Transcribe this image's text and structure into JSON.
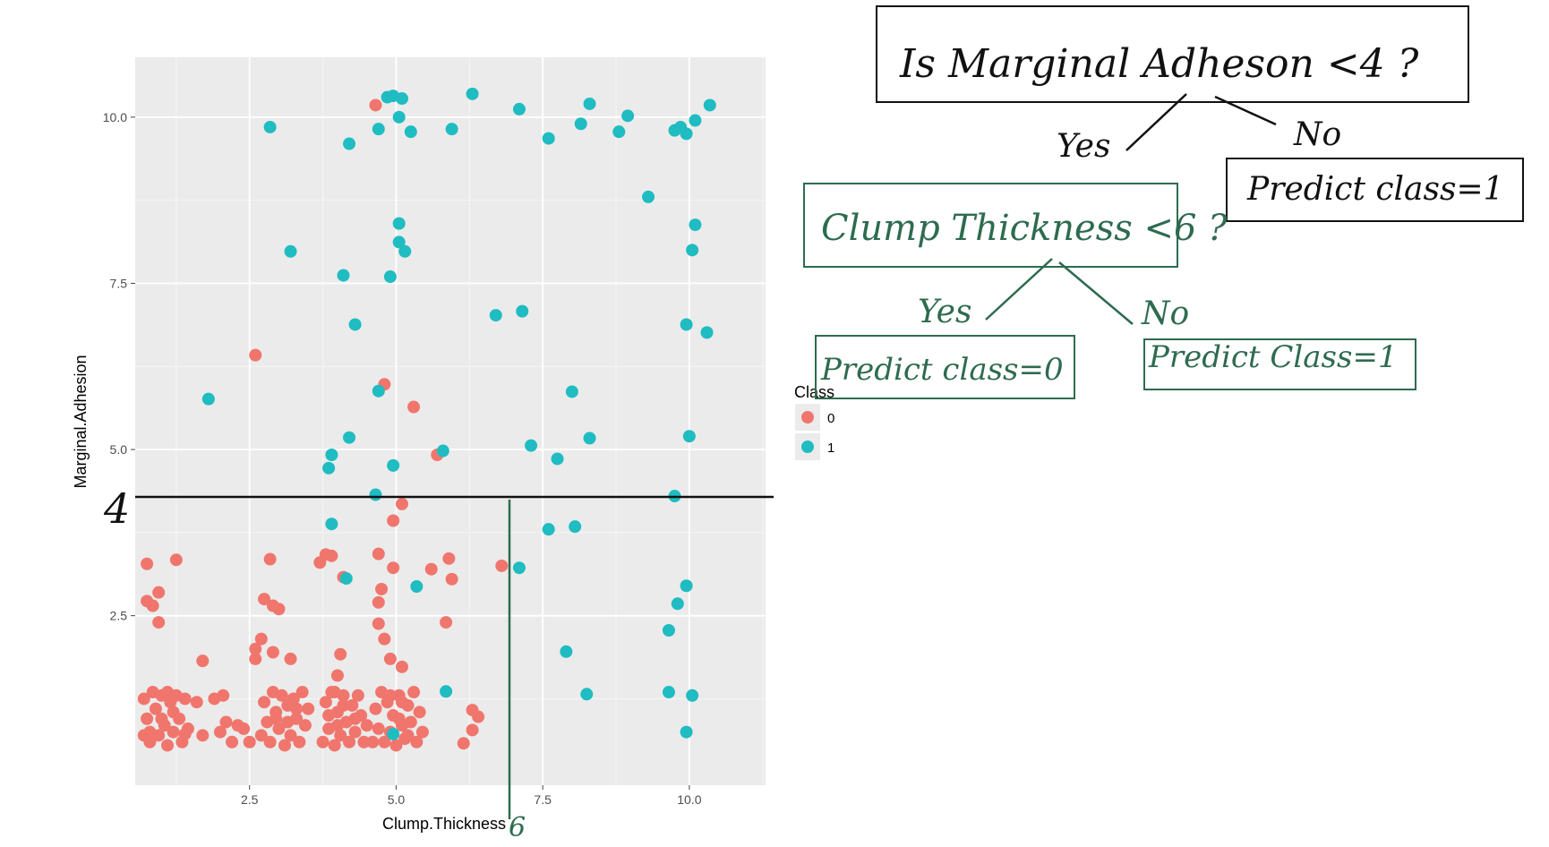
{
  "chart_data": {
    "type": "scatter",
    "xlabel": "Clump.Thickness",
    "ylabel": "Marginal.Adhesion",
    "xlim": [
      0.55,
      11.3
    ],
    "ylim": [
      -0.05,
      10.9
    ],
    "xticks": [
      {
        "value": 2.5,
        "label": "2.5"
      },
      {
        "value": 5.0,
        "label": "5.0"
      },
      {
        "value": 7.5,
        "label": "7.5"
      },
      {
        "value": 10.0,
        "label": "10.0"
      }
    ],
    "yticks": [
      {
        "value": 2.5,
        "label": "2.5"
      },
      {
        "value": 5.0,
        "label": "5.0"
      },
      {
        "value": 7.5,
        "label": "7.5"
      },
      {
        "value": 10.0,
        "label": "10.0"
      }
    ],
    "legend": {
      "title": "Class",
      "position": "right"
    },
    "grid": true,
    "series": [
      {
        "name": "0",
        "color": "#f0766d",
        "points": [
          [
            4.65,
            10.18
          ],
          [
            2.6,
            6.42
          ],
          [
            4.8,
            5.98
          ],
          [
            5.3,
            5.64
          ],
          [
            5.7,
            4.92
          ],
          [
            5.1,
            4.18
          ],
          [
            4.95,
            3.93
          ],
          [
            4.7,
            3.43
          ],
          [
            4.95,
            3.22
          ],
          [
            4.75,
            2.9
          ],
          [
            4.7,
            2.7
          ],
          [
            4.7,
            2.38
          ],
          [
            4.8,
            2.15
          ],
          [
            4.9,
            1.85
          ],
          [
            5.1,
            1.73
          ],
          [
            5.9,
            3.36
          ],
          [
            5.95,
            3.05
          ],
          [
            5.6,
            3.2
          ],
          [
            5.85,
            2.4
          ],
          [
            6.8,
            3.25
          ],
          [
            3.7,
            3.3
          ],
          [
            3.8,
            3.42
          ],
          [
            3.9,
            3.4
          ],
          [
            4.1,
            3.08
          ],
          [
            4.05,
            1.92
          ],
          [
            4.0,
            1.6
          ],
          [
            3.95,
            1.35
          ],
          [
            2.85,
            3.35
          ],
          [
            2.75,
            2.75
          ],
          [
            2.9,
            2.65
          ],
          [
            3.0,
            2.6
          ],
          [
            2.7,
            2.15
          ],
          [
            2.6,
            2.0
          ],
          [
            2.6,
            1.85
          ],
          [
            2.9,
            1.95
          ],
          [
            3.2,
            1.85
          ],
          [
            1.25,
            3.34
          ],
          [
            0.75,
            3.28
          ],
          [
            0.95,
            2.85
          ],
          [
            0.75,
            2.72
          ],
          [
            0.85,
            2.65
          ],
          [
            0.95,
            2.4
          ],
          [
            1.7,
            1.82
          ],
          [
            6.3,
            1.08
          ],
          [
            6.4,
            0.98
          ],
          [
            6.3,
            0.78
          ],
          [
            6.15,
            0.58
          ],
          [
            0.7,
            1.25
          ],
          [
            0.75,
            0.95
          ],
          [
            0.8,
            0.6
          ],
          [
            0.85,
            1.35
          ],
          [
            0.9,
            1.1
          ],
          [
            0.95,
            0.7
          ],
          [
            1.0,
            1.3
          ],
          [
            1.05,
            0.85
          ],
          [
            1.1,
            0.55
          ],
          [
            1.15,
            1.2
          ],
          [
            1.2,
            0.75
          ],
          [
            1.25,
            1.3
          ],
          [
            1.3,
            0.95
          ],
          [
            1.35,
            0.6
          ],
          [
            1.4,
            1.25
          ],
          [
            1.45,
            0.8
          ],
          [
            1.0,
            0.95
          ],
          [
            0.8,
            0.75
          ],
          [
            1.2,
            1.05
          ],
          [
            1.4,
            0.72
          ],
          [
            0.7,
            0.7
          ],
          [
            1.1,
            1.35
          ],
          [
            1.6,
            1.2
          ],
          [
            1.7,
            0.7
          ],
          [
            1.9,
            1.25
          ],
          [
            2.0,
            0.75
          ],
          [
            2.05,
            1.3
          ],
          [
            2.1,
            0.9
          ],
          [
            2.2,
            0.6
          ],
          [
            2.3,
            0.85
          ],
          [
            2.4,
            0.8
          ],
          [
            2.5,
            0.6
          ],
          [
            2.7,
            0.7
          ],
          [
            2.75,
            1.2
          ],
          [
            2.8,
            0.9
          ],
          [
            2.85,
            0.6
          ],
          [
            2.9,
            1.35
          ],
          [
            2.95,
            1.05
          ],
          [
            3.0,
            0.8
          ],
          [
            3.05,
            1.3
          ],
          [
            3.1,
            0.55
          ],
          [
            3.15,
            1.15
          ],
          [
            3.2,
            0.7
          ],
          [
            3.25,
            1.25
          ],
          [
            3.3,
            0.95
          ],
          [
            3.35,
            0.6
          ],
          [
            3.4,
            1.35
          ],
          [
            3.45,
            0.85
          ],
          [
            3.5,
            1.1
          ],
          [
            2.95,
            0.95
          ],
          [
            3.15,
            0.9
          ],
          [
            3.3,
            1.1
          ],
          [
            3.75,
            0.6
          ],
          [
            3.8,
            1.2
          ],
          [
            3.85,
            0.8
          ],
          [
            3.9,
            1.35
          ],
          [
            3.95,
            0.55
          ],
          [
            4.0,
            1.05
          ],
          [
            4.05,
            0.7
          ],
          [
            4.1,
            1.3
          ],
          [
            4.15,
            0.9
          ],
          [
            4.2,
            0.6
          ],
          [
            4.25,
            1.15
          ],
          [
            4.3,
            0.75
          ],
          [
            4.35,
            1.3
          ],
          [
            4.4,
            1.0
          ],
          [
            4.45,
            0.6
          ],
          [
            4.5,
            0.85
          ],
          [
            3.85,
            1.0
          ],
          [
            4.1,
            1.15
          ],
          [
            4.3,
            0.95
          ],
          [
            4.0,
            0.85
          ],
          [
            4.6,
            0.6
          ],
          [
            4.65,
            1.1
          ],
          [
            4.7,
            0.8
          ],
          [
            4.75,
            1.35
          ],
          [
            4.8,
            0.6
          ],
          [
            4.85,
            1.2
          ],
          [
            4.9,
            0.75
          ],
          [
            4.95,
            1.0
          ],
          [
            5.0,
            0.55
          ],
          [
            5.05,
            1.3
          ],
          [
            5.1,
            0.85
          ],
          [
            5.15,
            0.65
          ],
          [
            5.2,
            1.15
          ],
          [
            5.25,
            0.9
          ],
          [
            5.3,
            1.35
          ],
          [
            5.35,
            0.6
          ],
          [
            5.4,
            1.05
          ],
          [
            5.45,
            0.75
          ],
          [
            5.1,
            1.2
          ],
          [
            5.2,
            0.7
          ],
          [
            5.05,
            0.95
          ],
          [
            4.9,
            1.3
          ]
        ]
      },
      {
        "name": "1",
        "color": "#1fbcc2",
        "points": [
          [
            4.85,
            10.3
          ],
          [
            4.95,
            10.32
          ],
          [
            5.1,
            10.28
          ],
          [
            6.3,
            10.35
          ],
          [
            7.1,
            10.12
          ],
          [
            8.3,
            10.2
          ],
          [
            8.95,
            10.02
          ],
          [
            10.35,
            10.18
          ],
          [
            2.85,
            9.85
          ],
          [
            4.7,
            9.82
          ],
          [
            5.05,
            10.0
          ],
          [
            5.25,
            9.78
          ],
          [
            5.95,
            9.82
          ],
          [
            7.6,
            9.68
          ],
          [
            8.15,
            9.9
          ],
          [
            8.8,
            9.78
          ],
          [
            9.75,
            9.8
          ],
          [
            9.85,
            9.85
          ],
          [
            9.95,
            9.75
          ],
          [
            10.1,
            9.95
          ],
          [
            4.2,
            9.6
          ],
          [
            9.3,
            8.8
          ],
          [
            5.05,
            8.4
          ],
          [
            5.05,
            8.12
          ],
          [
            5.15,
            7.98
          ],
          [
            3.2,
            7.98
          ],
          [
            10.1,
            8.38
          ],
          [
            10.05,
            8.0
          ],
          [
            4.1,
            7.62
          ],
          [
            4.9,
            7.6
          ],
          [
            6.7,
            7.02
          ],
          [
            7.15,
            7.08
          ],
          [
            4.3,
            6.88
          ],
          [
            9.95,
            6.88
          ],
          [
            10.3,
            6.76
          ],
          [
            1.8,
            5.76
          ],
          [
            4.7,
            5.88
          ],
          [
            8.0,
            5.87
          ],
          [
            4.2,
            5.18
          ],
          [
            8.3,
            5.17
          ],
          [
            10.0,
            5.2
          ],
          [
            7.3,
            5.06
          ],
          [
            5.8,
            4.98
          ],
          [
            3.9,
            4.92
          ],
          [
            3.85,
            4.72
          ],
          [
            4.95,
            4.76
          ],
          [
            7.75,
            4.86
          ],
          [
            4.65,
            4.32
          ],
          [
            9.75,
            4.3
          ],
          [
            3.9,
            3.88
          ],
          [
            7.6,
            3.8
          ],
          [
            8.05,
            3.84
          ],
          [
            7.1,
            3.22
          ],
          [
            4.15,
            3.06
          ],
          [
            5.35,
            2.94
          ],
          [
            9.95,
            2.95
          ],
          [
            9.8,
            2.68
          ],
          [
            9.65,
            2.28
          ],
          [
            7.9,
            1.96
          ],
          [
            5.85,
            1.36
          ],
          [
            8.25,
            1.32
          ],
          [
            9.65,
            1.35
          ],
          [
            10.05,
            1.3
          ],
          [
            4.95,
            0.72
          ],
          [
            9.95,
            0.75
          ]
        ]
      }
    ]
  },
  "annotations": {
    "line_4_label": "4",
    "line_6_label": "6",
    "root_question": "Is Marginal Adheson <4 ?",
    "root_yes": "Yes",
    "root_no": "No",
    "root_no_leaf": "Predict class=1",
    "child_question": "Clump Thickness <6 ?",
    "child_yes": "Yes",
    "child_no": "No",
    "child_yes_leaf": "Predict class=0",
    "child_no_leaf": "Predict Class=1",
    "black": "#111111",
    "green": "#2e6b4f"
  }
}
